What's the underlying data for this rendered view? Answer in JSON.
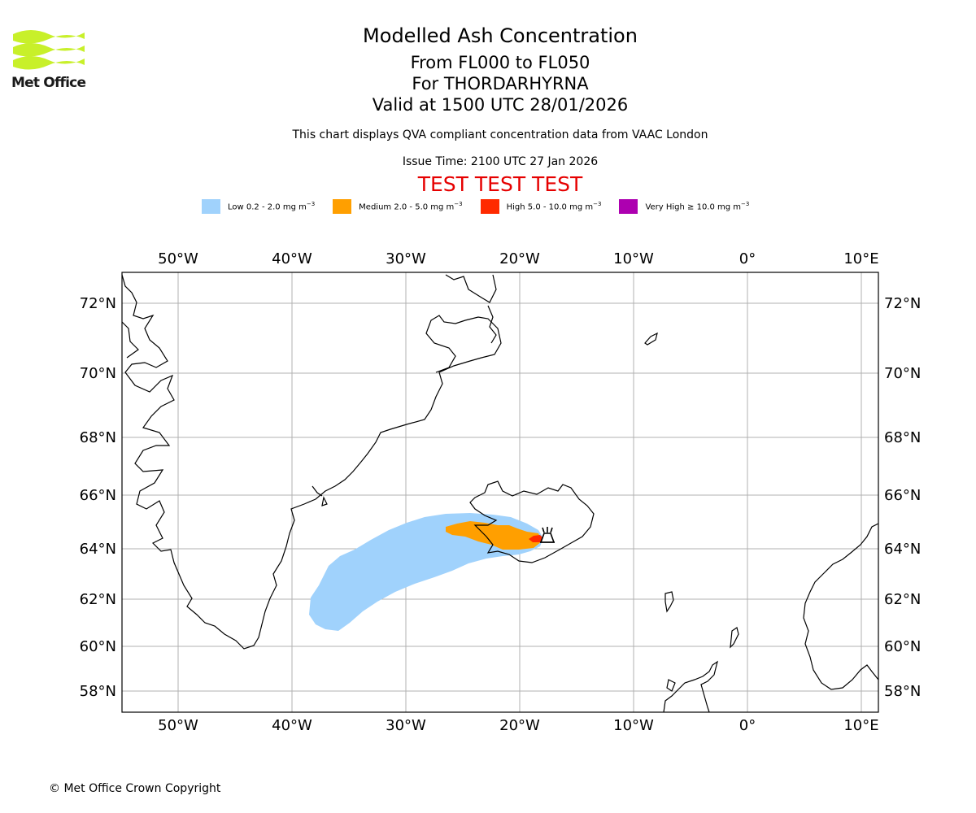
{
  "brand": {
    "logo_text": "Met Office"
  },
  "header": {
    "title": "Modelled Ash Concentration",
    "levels": "From FL000 to FL050",
    "volcano": "For THORDARHYRNA",
    "valid": "Valid at 1500 UTC 28/01/2026",
    "source_note": "This chart displays QVA compliant concentration data from VAAC London",
    "issue_time": "Issue Time: 2100 UTC 27 Jan 2026",
    "test_banner": "TEST TEST TEST"
  },
  "legend": [
    {
      "label": "Low 0.2 - 2.0 mg m",
      "color": "#a0d2fc"
    },
    {
      "label": "Medium 2.0 - 5.0 mg m",
      "color": "#ff9f00"
    },
    {
      "label": "High 5.0 - 10.0 mg m",
      "color": "#ff2a00"
    },
    {
      "label": "Very High ≥ 10.0 mg m",
      "color": "#ad00b0"
    }
  ],
  "legend_unit_exponent": "−3",
  "map": {
    "lon_labels": [
      "50°W",
      "40°W",
      "30°W",
      "20°W",
      "10°W",
      "0°",
      "10°E"
    ],
    "lat_labels": [
      "72°N",
      "70°N",
      "68°N",
      "66°N",
      "64°N",
      "62°N",
      "60°N",
      "58°N"
    ],
    "volcano_icon": "volcano-icon"
  },
  "footer": {
    "copyright": "© Met Office Crown Copyright"
  }
}
